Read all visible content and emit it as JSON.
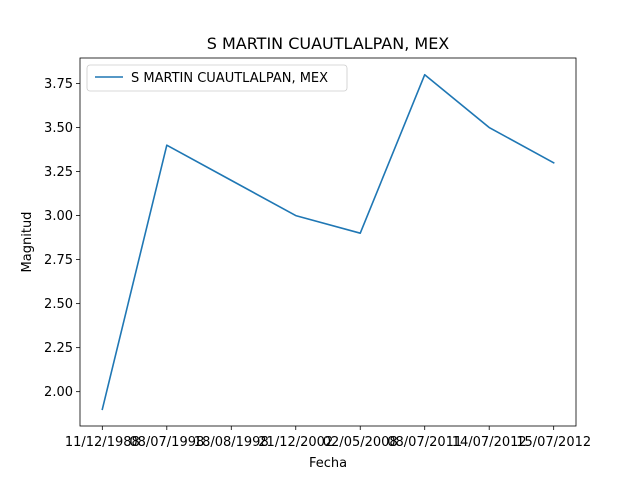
{
  "chart_data": {
    "type": "line",
    "title": "S MARTIN CUAUTLALPAN, MEX",
    "xlabel": "Fecha",
    "ylabel": "Magnitud",
    "categories": [
      "11/12/1988",
      "08/07/1998",
      "18/08/1998",
      "21/12/2002",
      "02/05/2008",
      "08/07/2011",
      "14/07/2012",
      "15/07/2012"
    ],
    "series": [
      {
        "name": "S MARTIN CUAUTLALPAN, MEX",
        "values": [
          1.9,
          3.4,
          3.2,
          3.0,
          2.9,
          3.8,
          3.5,
          3.3
        ],
        "color": "#1f77b4"
      }
    ],
    "ylim": [
      1.805,
      3.895
    ],
    "yticks": [
      2.0,
      2.25,
      2.5,
      2.75,
      3.0,
      3.25,
      3.5,
      3.75
    ],
    "ytick_labels": [
      "2.00",
      "2.25",
      "2.50",
      "2.75",
      "3.00",
      "3.25",
      "3.50",
      "3.75"
    ],
    "grid": false,
    "legend": "top-left"
  }
}
